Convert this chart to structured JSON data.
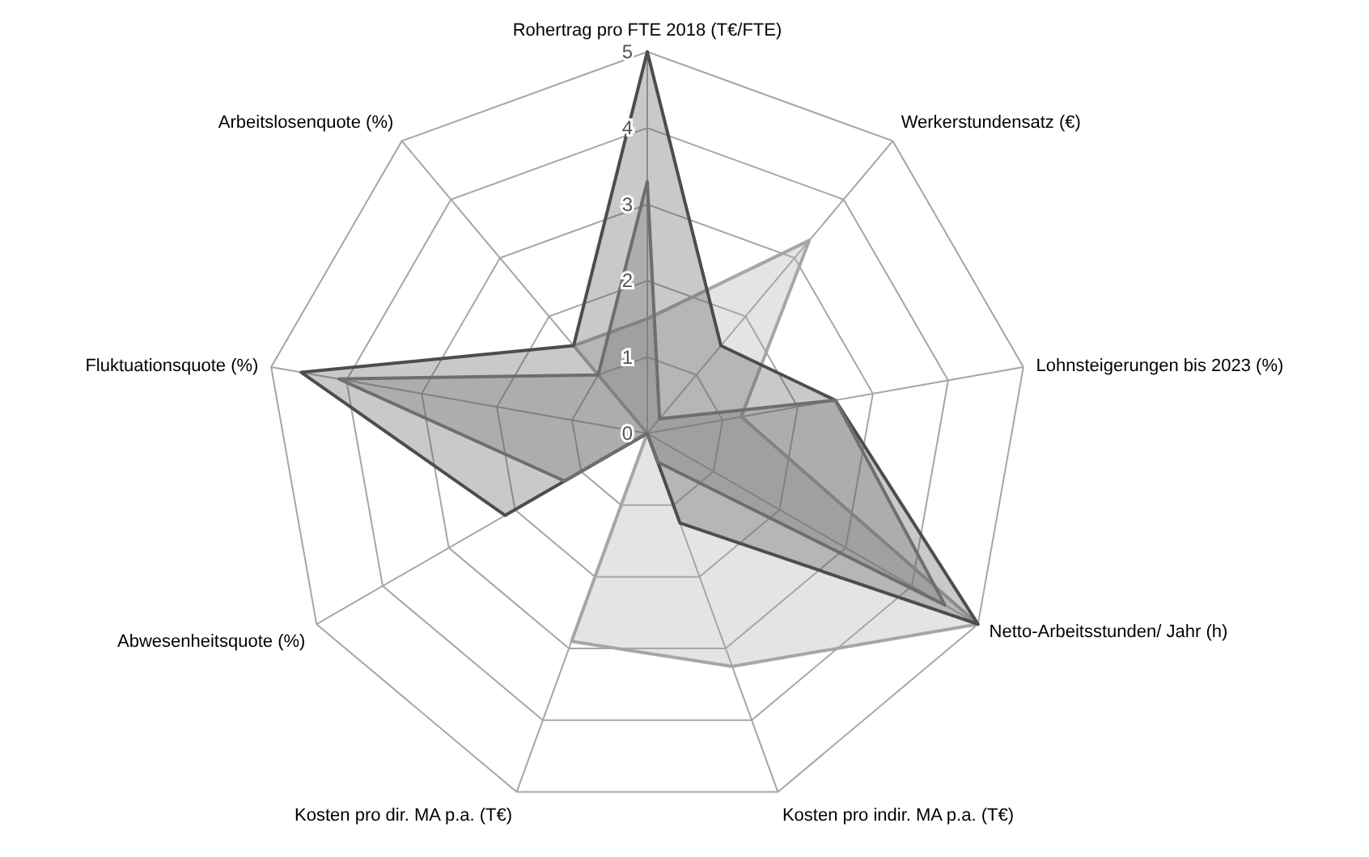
{
  "chart_data": {
    "type": "radar",
    "categories": [
      "Rohertrag pro FTE 2018 (T€/FTE)",
      "Werkerstundensatz (€)",
      "Lohnsteigerungen bis 2023 (%)",
      "Netto-Arbeitsstunden/ Jahr (h)",
      "Kosten pro indir. MA p.a. (T€)",
      "Kosten pro dir. MA p.a. (T€)",
      "Abwesenheitsquote (%)",
      "Fluktuationsquote (%)",
      "Arbeitslosenquote (%)"
    ],
    "series": [
      {
        "color": "#a6a6a6",
        "values": [
          1.5,
          3.3,
          1.25,
          5,
          3.25,
          2.9,
          0,
          0,
          1.5
        ]
      },
      {
        "color": "#4d4d4d",
        "values": [
          5,
          1.5,
          2.5,
          5,
          1.25,
          0,
          2.15,
          4.6,
          1.5
        ]
      },
      {
        "color": "#6e6e6e",
        "values": [
          3.3,
          0.25,
          2.5,
          4.5,
          0.4,
          0,
          1.25,
          4.1,
          1
        ]
      }
    ],
    "ylim": [
      0,
      5
    ],
    "yticks": [
      0,
      1,
      2,
      3,
      4,
      5
    ],
    "grid": true
  }
}
